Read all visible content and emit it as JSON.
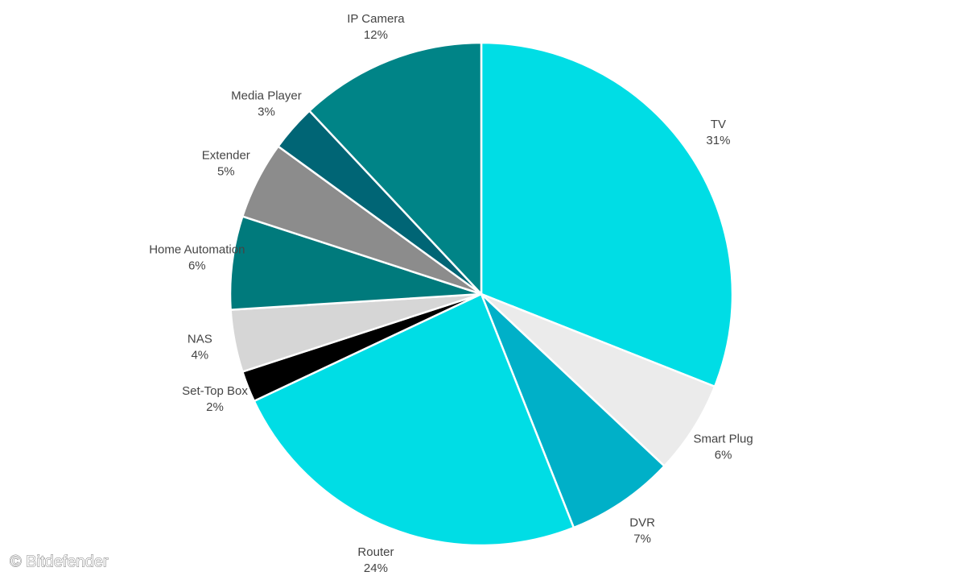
{
  "chart_data": {
    "type": "pie",
    "categories": [
      "TV",
      "Smart Plug",
      "DVR",
      "Router",
      "Set-Top Box",
      "NAS",
      "Home Automation",
      "Extender",
      "Media Player",
      "IP Camera"
    ],
    "values": [
      31,
      6,
      7,
      24,
      2,
      4,
      6,
      5,
      3,
      12
    ],
    "value_labels": [
      "31%",
      "6%",
      "7%",
      "24%",
      "2%",
      "4%",
      "6%",
      "5%",
      "3%",
      "12%"
    ],
    "colors": [
      "#00dde5",
      "#ebebeb",
      "#00b0c8",
      "#00dde5",
      "#000000",
      "#d6d6d6",
      "#007a7c",
      "#8c8c8c",
      "#006575",
      "#008487"
    ],
    "source": "© Bitdefender"
  }
}
